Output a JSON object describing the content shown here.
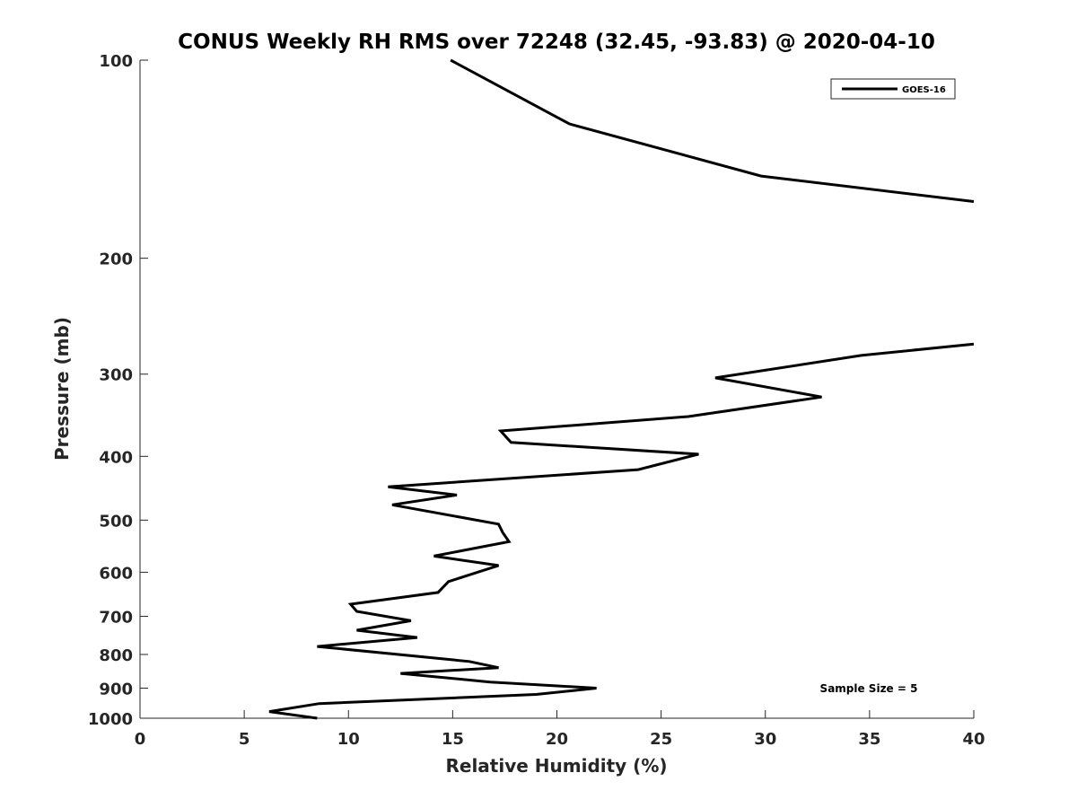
{
  "chart_data": {
    "type": "line",
    "title": "CONUS Weekly RH RMS over 72248 (32.45, -93.83) @ 2020-04-10",
    "xlabel": "Relative Humidity (%)",
    "ylabel": "Pressure (mb)",
    "xlim": [
      0,
      40
    ],
    "ylim": [
      100,
      1000
    ],
    "y_scale": "log",
    "y_reversed": true,
    "x_ticks": [
      0,
      5,
      10,
      15,
      20,
      25,
      30,
      35,
      40
    ],
    "y_ticks": [
      100,
      200,
      300,
      400,
      500,
      600,
      700,
      800,
      900,
      1000
    ],
    "grid": false,
    "legend_position": "top-right",
    "annotation": "Sample Size = 5",
    "series": [
      {
        "name": "GOES-16",
        "color": "#000000",
        "segments": [
          [
            [
              14.9,
              100
            ],
            [
              20.6,
              125
            ],
            [
              29.8,
              150
            ],
            [
              40.0,
              164
            ]
          ],
          [
            [
              40.0,
              270
            ],
            [
              34.6,
              281
            ],
            [
              27.6,
              304
            ],
            [
              32.7,
              325
            ],
            [
              26.3,
              348
            ],
            [
              17.3,
              366
            ],
            [
              17.8,
              381
            ],
            [
              26.8,
              397
            ],
            [
              23.9,
              419
            ],
            [
              11.9,
              445
            ],
            [
              15.2,
              458
            ],
            [
              12.1,
              474
            ],
            [
              17.2,
              507
            ],
            [
              17.4,
              522
            ],
            [
              17.7,
              539
            ],
            [
              14.1,
              567
            ],
            [
              17.2,
              586
            ],
            [
              14.8,
              620
            ],
            [
              14.3,
              644
            ],
            [
              10.1,
              671
            ],
            [
              10.4,
              688
            ],
            [
              13.0,
              711
            ],
            [
              10.4,
              735
            ],
            [
              13.3,
              754
            ],
            [
              8.5,
              778
            ],
            [
              15.8,
              820
            ],
            [
              17.2,
              838
            ],
            [
              12.5,
              855
            ],
            [
              16.8,
              881
            ],
            [
              21.9,
              900
            ],
            [
              19.0,
              920
            ],
            [
              8.6,
              950
            ],
            [
              6.2,
              977
            ],
            [
              8.5,
              1000
            ]
          ]
        ]
      }
    ]
  }
}
